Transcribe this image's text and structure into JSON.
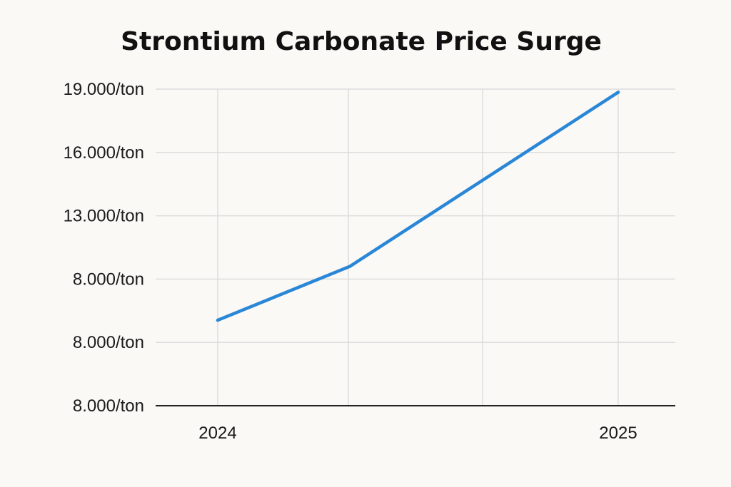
{
  "chart_data": {
    "type": "line",
    "title": "Strontium Carbonate Price Surge",
    "xlabel": "",
    "ylabel": "",
    "y_tick_labels": [
      "19.000/ton",
      "16.000/ton",
      "13.000/ton",
      "8.000/ton",
      "8.000/ton",
      "8.000/ton"
    ],
    "x_tick_labels": [
      "2024",
      "2025"
    ],
    "grid": true,
    "legend": "none",
    "colors": {
      "line": "#2a86d6",
      "grid": "#dddddd",
      "axis": "#222222",
      "background": "#faf9f6"
    },
    "series": [
      {
        "points": [
          {
            "x": 0.0,
            "y": 1.35
          },
          {
            "x": 0.33,
            "y": 2.2
          },
          {
            "x": 1.0,
            "y": 4.95
          }
        ]
      }
    ]
  }
}
